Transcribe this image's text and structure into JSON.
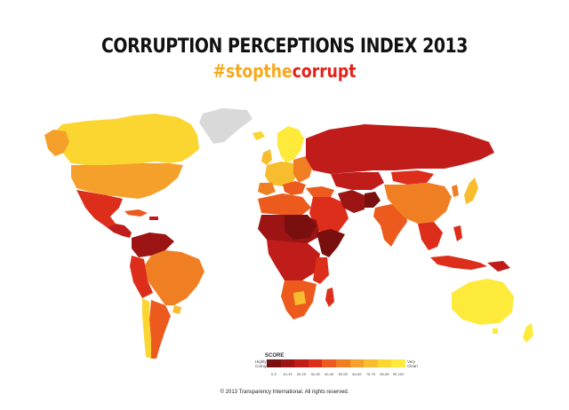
{
  "header": {
    "title": "CORRUPTION PERCEPTIONS INDEX 2013",
    "hashtag_prefix": "#stopthe",
    "hashtag_suffix": "corrupt"
  },
  "legend": {
    "title": "SCORE",
    "low_label": "Highly Corrupt",
    "high_label": "Very Clean",
    "bands": [
      {
        "range": "0-9",
        "color": "#7a0f0f"
      },
      {
        "range": "10-19",
        "color": "#9c1414"
      },
      {
        "range": "20-29",
        "color": "#c01c1a"
      },
      {
        "range": "30-39",
        "color": "#dd2e1c"
      },
      {
        "range": "40-49",
        "color": "#ec5a1e"
      },
      {
        "range": "50-59",
        "color": "#f07f24"
      },
      {
        "range": "60-69",
        "color": "#f5a02a"
      },
      {
        "range": "70-79",
        "color": "#f8bd2e"
      },
      {
        "range": "80-89",
        "color": "#fbd630"
      },
      {
        "range": "90-100",
        "color": "#fdea3a"
      }
    ]
  },
  "colors": {
    "hashtag_prefix": "#f7a81b",
    "hashtag_suffix": "#e2231a",
    "no_data": "#d9d9d9"
  },
  "footer": {
    "copyright": "© 2013 Transparency International. All rights reserved."
  }
}
